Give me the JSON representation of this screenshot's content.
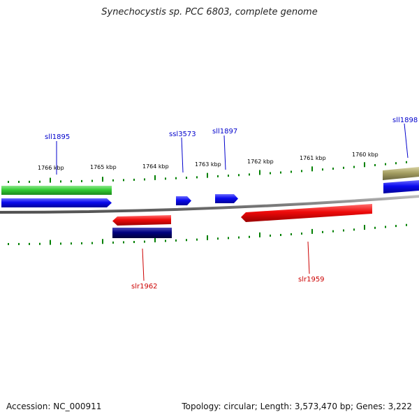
{
  "title": "Synechocystis sp. PCC 6803, complete genome",
  "footer": {
    "accession": "Accession: NC_000911",
    "summary": "Topology: circular; Length: 3,573,470 bp; Genes: 3,222"
  },
  "ticks": [
    {
      "label": "1766 kbp"
    },
    {
      "label": "1765 kbp"
    },
    {
      "label": "1764 kbp"
    },
    {
      "label": "1763 kbp"
    },
    {
      "label": "1762 kbp"
    },
    {
      "label": "1761 kbp"
    },
    {
      "label": "1760 kbp"
    }
  ],
  "genes": [
    {
      "name": "sll1895",
      "strand": "minus"
    },
    {
      "name": "ssl3573",
      "strand": "minus"
    },
    {
      "name": "sll1897",
      "strand": "minus"
    },
    {
      "name": "sll1898",
      "strand": "minus"
    },
    {
      "name": "slr1962",
      "strand": "plus"
    },
    {
      "name": "slr1959",
      "strand": "plus"
    }
  ],
  "colors": {
    "backbone": "#8a8a8a",
    "minus_gene": "#0a0aee",
    "plus_gene": "#ee0a0a",
    "feature_green": "#33cc33",
    "feature_navy": "#000080",
    "feature_olive": "#a09a5e",
    "tick": "#008000",
    "label_minus": "#0000cc",
    "label_plus": "#cc0000"
  }
}
